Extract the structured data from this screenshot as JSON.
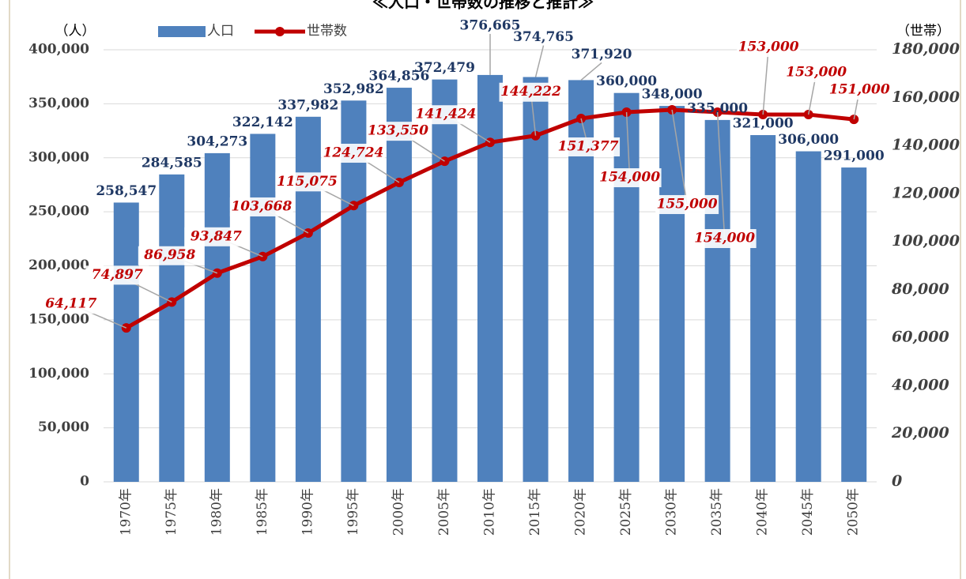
{
  "chart_data": {
    "type": "bar_line",
    "title": "≪人口・世帯数の推移と推計≫",
    "y_label": "（人）",
    "y2_label": "（世帯）",
    "categories": [
      "1970年",
      "1975年",
      "1980年",
      "1985年",
      "1990年",
      "1995年",
      "2000年",
      "2005年",
      "2010年",
      "2015年",
      "2020年",
      "2025年",
      "2030年",
      "2035年",
      "2040年",
      "2045年",
      "2050年"
    ],
    "series": [
      {
        "name": "人口",
        "type": "bar",
        "color": "#4f81bd",
        "label_color": "#1f3864",
        "values": [
          258547,
          284585,
          304273,
          322142,
          337982,
          352982,
          364856,
          372479,
          376665,
          374765,
          371920,
          360000,
          348000,
          335000,
          321000,
          306000,
          291000
        ],
        "value_labels": [
          "258,547",
          "284,585",
          "304,273",
          "322,142",
          "337,982",
          "352,982",
          "364,856",
          "372,479",
          "376,665",
          "374,765",
          "371,920",
          "360,000",
          "348,000",
          "335,000",
          "321,000",
          "306,000",
          "291,000"
        ]
      },
      {
        "name": "世帯数",
        "type": "line",
        "axis": "y2",
        "color": "#c00000",
        "label_color": "#c00000",
        "values": [
          64117,
          74897,
          86958,
          93847,
          103668,
          115075,
          124724,
          133550,
          141424,
          144222,
          151377,
          154000,
          155000,
          154000,
          153000,
          153000,
          151000
        ],
        "value_labels": [
          "64,117",
          "74,897",
          "86,958",
          "93,847",
          "103,668",
          "115,075",
          "124,724",
          "133,550",
          "141,424",
          "144,222",
          "151,377",
          "154,000",
          "155,000",
          "154,000",
          "153,000",
          "153,000",
          "151,000"
        ]
      }
    ],
    "ylim": [
      0,
      400000
    ],
    "yticks": [
      0,
      {
        "value": 50000,
        "label": "50,000"
      },
      {
        "value": 100000,
        "label": "100,000"
      },
      {
        "value": 150000,
        "label": "150,000"
      },
      {
        "value": 200000,
        "label": "200,000"
      },
      {
        "value": 250000,
        "label": "250,000"
      },
      {
        "value": 300000,
        "label": "300,000"
      },
      {
        "value": 350000,
        "label": "350,000"
      },
      {
        "value": 400000,
        "label": "400,000"
      }
    ],
    "y2lim": [
      0,
      180000
    ],
    "y2ticks": [
      0,
      {
        "value": 20000,
        "label": "20,000"
      },
      {
        "value": 40000,
        "label": "40,000"
      },
      {
        "value": 60000,
        "label": "60,000"
      },
      {
        "value": 80000,
        "label": "80,000"
      },
      {
        "value": 100000,
        "label": "100,000"
      },
      {
        "value": 120000,
        "label": "120,000"
      },
      {
        "value": 140000,
        "label": "140,000"
      },
      {
        "value": 160000,
        "label": "160,000"
      },
      {
        "value": 180000,
        "label": "180,000"
      }
    ],
    "grid": true
  }
}
